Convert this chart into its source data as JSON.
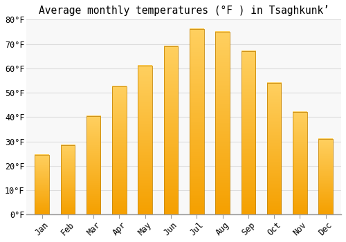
{
  "title": "Average monthly temperatures (°F ) in Tsaghkunkʼ",
  "months": [
    "Jan",
    "Feb",
    "Mar",
    "Apr",
    "May",
    "Jun",
    "Jul",
    "Aug",
    "Sep",
    "Oct",
    "Nov",
    "Dec"
  ],
  "values": [
    24.5,
    28.5,
    40.5,
    52.5,
    61,
    69,
    76,
    75,
    67,
    54,
    42,
    31
  ],
  "bar_color_light": "#FFD060",
  "bar_color_dark": "#F5A000",
  "background_color": "#FFFFFF",
  "plot_bg_color": "#F8F8F8",
  "ylim": [
    0,
    80
  ],
  "yticks": [
    0,
    10,
    20,
    30,
    40,
    50,
    60,
    70,
    80
  ],
  "ytick_labels": [
    "0°F",
    "10°F",
    "20°F",
    "30°F",
    "40°F",
    "50°F",
    "60°F",
    "70°F",
    "80°F"
  ],
  "title_fontsize": 10.5,
  "tick_fontsize": 8.5,
  "grid_color": "#DDDDDD",
  "bar_edge_color": "#C8880A",
  "bar_width": 0.55
}
